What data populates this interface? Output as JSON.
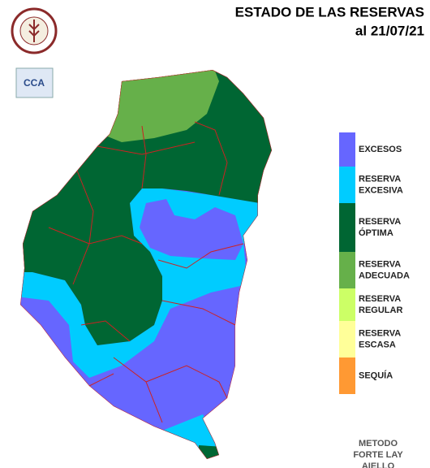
{
  "header": {
    "title": "ESTADO DE LAS RESERVAS",
    "date": "al 21/07/21"
  },
  "logo": {
    "text": "CCA"
  },
  "legend": {
    "items": [
      {
        "label": [
          "EXCESOS"
        ],
        "color": "#6666ff"
      },
      {
        "label": [
          "RESERVA",
          "EXCESIVA"
        ],
        "color": "#00ccff"
      },
      {
        "label": [
          "RESERVA",
          "ÓPTIMA"
        ],
        "color": "#006633"
      },
      {
        "label": [
          "RESERVA",
          "ADECUADA"
        ],
        "color": "#66b04a"
      },
      {
        "label": [
          "RESERVA",
          "REGULAR"
        ],
        "color": "#ccff66"
      },
      {
        "label": [
          "RESERVA",
          "ESCASA"
        ],
        "color": "#ffff99"
      },
      {
        "label": [
          "SEQUÍA"
        ],
        "color": "#ff9933"
      }
    ]
  },
  "footer": {
    "method": [
      "METODO",
      "FORTE LAY",
      "AIELLO"
    ]
  }
}
